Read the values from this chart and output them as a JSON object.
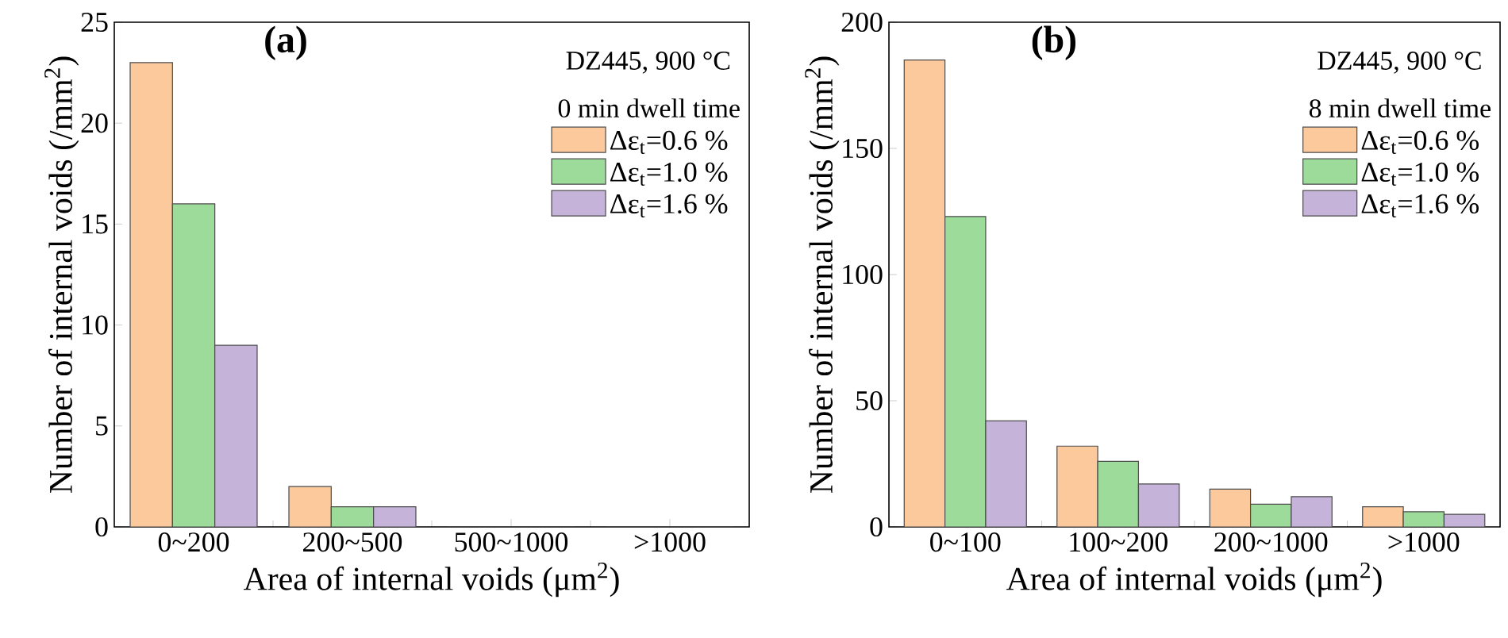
{
  "chart_data": [
    {
      "type": "bar",
      "title": "(a)",
      "xlabel": "Area of internal voids (μm$^{2}$)",
      "ylabel": "Number of internal voids (/mm$^{2}$)",
      "annotations": [
        "DZ445, 900 °C"
      ],
      "legend_title": "0 min dwell time",
      "legend": "top right",
      "categories": [
        "0~200",
        "200~500",
        "500~1000",
        ">1000"
      ],
      "series": [
        {
          "name": "Δε$_{t}$=0.6 %",
          "color": "#fbc99c",
          "values": [
            23,
            2,
            0,
            0
          ]
        },
        {
          "name": "Δε$_{t}$=1.0 %",
          "color": "#9ddb9b",
          "values": [
            16,
            1,
            0,
            0
          ]
        },
        {
          "name": "Δε$_{t}$=1.6 %",
          "color": "#c5b3da",
          "values": [
            9,
            1,
            0,
            0
          ]
        }
      ],
      "ylim": [
        0,
        25
      ],
      "yticks": [
        0,
        5,
        10,
        15,
        20,
        25
      ]
    },
    {
      "type": "bar",
      "title": "(b)",
      "xlabel": "Area of internal voids (μm$^{2}$)",
      "ylabel": "Number of internal voids (/mm$^{2}$)",
      "annotations": [
        "DZ445, 900 °C"
      ],
      "legend_title": "8 min dwell time",
      "legend": "top right",
      "categories": [
        "0~100",
        "100~200",
        "200~1000",
        ">1000"
      ],
      "series": [
        {
          "name": "Δε$_{t}$=0.6 %",
          "color": "#fbc99c",
          "values": [
            185,
            32,
            15,
            8
          ]
        },
        {
          "name": "Δε$_{t}$=1.0 %",
          "color": "#9ddb9b",
          "values": [
            123,
            26,
            9,
            6
          ]
        },
        {
          "name": "Δε$_{t}$=1.6 %",
          "color": "#c5b3da",
          "values": [
            42,
            17,
            12,
            5
          ]
        }
      ],
      "ylim": [
        0,
        200
      ],
      "yticks": [
        0,
        50,
        100,
        150,
        200
      ]
    }
  ]
}
